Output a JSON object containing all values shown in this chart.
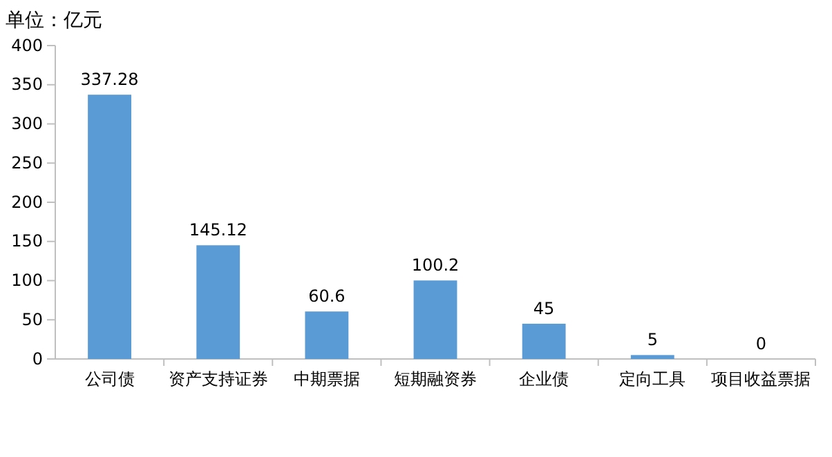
{
  "chart_data": {
    "type": "bar",
    "ylabel": "单位：亿元",
    "categories": [
      "公司债",
      "资产支持证券",
      "中期票据",
      "短期融资券",
      "企业债",
      "定向工具",
      "项目收益票据"
    ],
    "values": [
      337.28,
      145.12,
      60.6,
      100.2,
      45,
      5,
      0
    ],
    "color": "#5b9bd5",
    "ylim": [
      0,
      400
    ],
    "yticks": [
      0,
      50,
      100,
      150,
      200,
      250,
      300,
      350,
      400
    ],
    "data_labels": true
  }
}
